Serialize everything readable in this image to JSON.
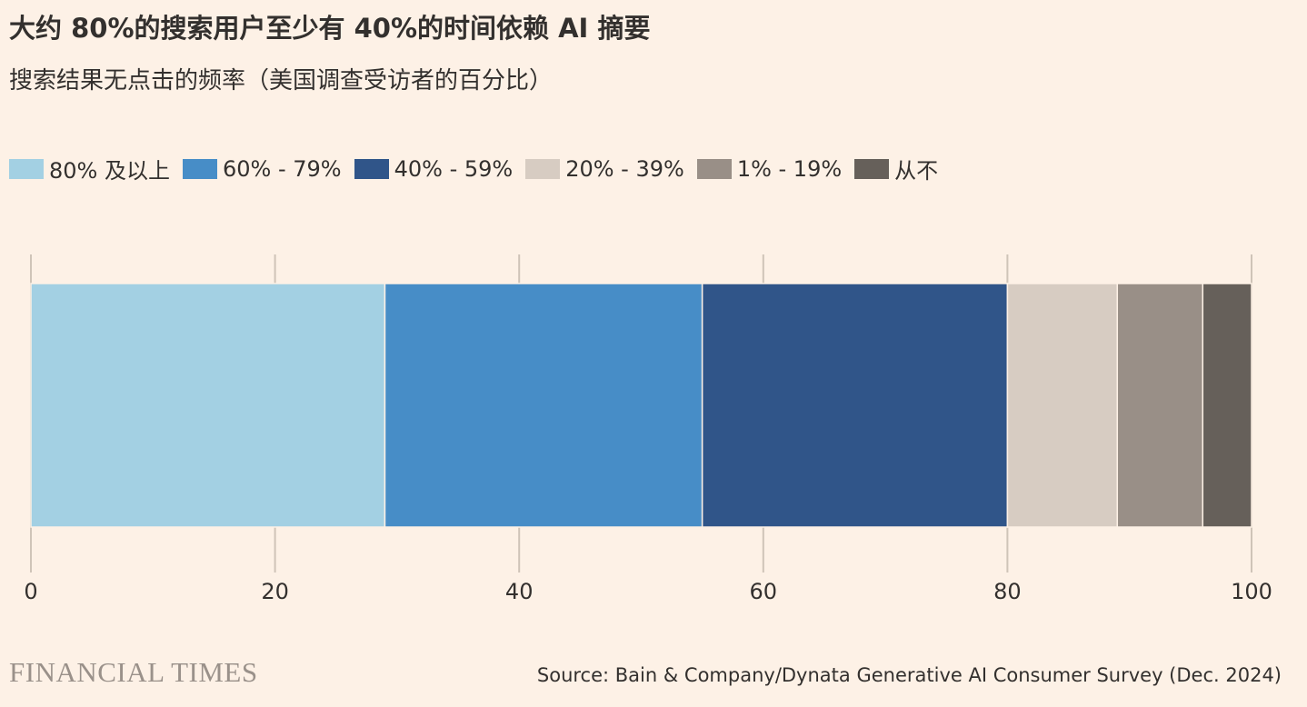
{
  "title": "大约 80%的搜索用户至少有 40%的时间依赖 AI 摘要",
  "subtitle": "搜索结果无点击的频率（美国调查受访者的百分比）",
  "brand": "FINANCIAL TIMES",
  "source": "Source: Bain & Company/Dynata Generative AI Consumer Survey (Dec. 2024)",
  "colors": {
    "background": "#fdf1e6",
    "gridline": "#cfc4b8",
    "axis_text": "#33302e"
  },
  "chart_data": {
    "type": "bar",
    "orientation": "horizontal-stacked",
    "categories": [
      ""
    ],
    "series": [
      {
        "name": "80% 及以上",
        "values": [
          29
        ],
        "color": "#a3d0e3"
      },
      {
        "name": "60% - 79%",
        "values": [
          26
        ],
        "color": "#478dc7"
      },
      {
        "name": "40% - 59%",
        "values": [
          25
        ],
        "color": "#305589"
      },
      {
        "name": "20% - 39%",
        "values": [
          9
        ],
        "color": "#d7ccc2"
      },
      {
        "name": "1% - 19%",
        "values": [
          7
        ],
        "color": "#998f87"
      },
      {
        "name": "从不",
        "values": [
          4
        ],
        "color": "#66605a"
      }
    ],
    "xlim": [
      0,
      100
    ],
    "xticks": [
      0,
      20,
      40,
      60,
      80,
      100
    ],
    "grid": true,
    "legend": "top-left"
  }
}
